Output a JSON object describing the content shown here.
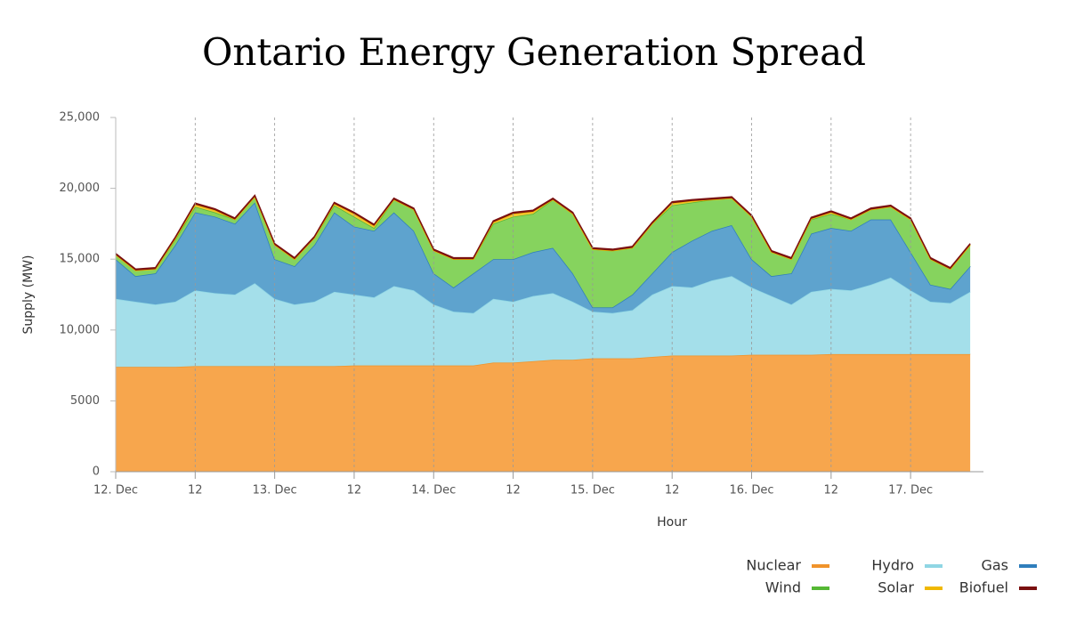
{
  "chart_data": {
    "type": "stacked_area",
    "title": "Ontario Energy Generation Spread",
    "x_label": "Hour",
    "y_label": "Supply (MW)",
    "x": [
      0,
      3,
      6,
      9,
      12,
      15,
      18,
      21,
      24,
      27,
      30,
      33,
      36,
      39,
      42,
      45,
      48,
      51,
      54,
      57,
      60,
      63,
      66,
      69,
      72,
      75,
      78,
      81,
      84,
      87,
      90,
      93,
      96,
      99,
      102,
      105,
      108,
      111,
      114,
      117,
      120,
      123,
      126,
      129
    ],
    "xlim": [
      0,
      131
    ],
    "xticks": [
      {
        "value": 0,
        "label": "12. Dec"
      },
      {
        "value": 12,
        "label": "12"
      },
      {
        "value": 24,
        "label": "13. Dec"
      },
      {
        "value": 36,
        "label": "12"
      },
      {
        "value": 48,
        "label": "14. Dec"
      },
      {
        "value": 60,
        "label": "12"
      },
      {
        "value": 72,
        "label": "15. Dec"
      },
      {
        "value": 84,
        "label": "12"
      },
      {
        "value": 96,
        "label": "16. Dec"
      },
      {
        "value": 108,
        "label": "12"
      },
      {
        "value": 120,
        "label": "17. Dec"
      }
    ],
    "ylim": [
      0,
      25000
    ],
    "yticks": [
      0,
      5000,
      {
        "value": 10000,
        "label": "10,000"
      },
      {
        "value": 15000,
        "label": "15,000"
      },
      {
        "value": 20000,
        "label": "20,000"
      },
      {
        "value": 25000,
        "label": "25,000"
      }
    ],
    "x_grid": true,
    "legend": "bottom-right",
    "series": [
      {
        "name": "Nuclear",
        "color": "#f7a64d",
        "line_color": "#f0932b",
        "values": [
          7400,
          7400,
          7400,
          7400,
          7450,
          7450,
          7450,
          7450,
          7450,
          7450,
          7450,
          7450,
          7500,
          7500,
          7500,
          7500,
          7500,
          7500,
          7500,
          7700,
          7700,
          7800,
          7900,
          7900,
          8000,
          8000,
          8000,
          8100,
          8200,
          8200,
          8200,
          8200,
          8250,
          8250,
          8250,
          8250,
          8300,
          8300,
          8300,
          8300,
          8300,
          8300,
          8300,
          8300
        ]
      },
      {
        "name": "Hydro",
        "color": "#a4dfea",
        "line_color": "#8fd6e4",
        "values": [
          4800,
          4600,
          4400,
          4600,
          5350,
          5150,
          5050,
          5850,
          4750,
          4350,
          4550,
          5250,
          5000,
          4800,
          5600,
          5300,
          4300,
          3800,
          3700,
          4500,
          4300,
          4600,
          4700,
          4100,
          3300,
          3200,
          3400,
          4400,
          4900,
          4800,
          5300,
          5600,
          4750,
          4150,
          3550,
          4450,
          4600,
          4500,
          4900,
          5400,
          4500,
          3700,
          3600,
          4400
        ]
      },
      {
        "name": "Gas",
        "color": "#5ea3ce",
        "line_color": "#2f7ebc",
        "values": [
          2800,
          1800,
          2200,
          4000,
          5500,
          5400,
          5000,
          5700,
          2800,
          2700,
          4000,
          5600,
          4800,
          4700,
          5200,
          4200,
          2200,
          1700,
          2800,
          2800,
          3000,
          3100,
          3200,
          2000,
          300,
          400,
          1100,
          1500,
          2400,
          3300,
          3500,
          3600,
          2000,
          1400,
          2200,
          4100,
          4300,
          4200,
          4600,
          4100,
          2700,
          1200,
          1000,
          1800
        ]
      },
      {
        "name": "Wind",
        "color": "#86d35e",
        "line_color": "#55b834",
        "values": [
          300,
          400,
          300,
          400,
          400,
          300,
          300,
          400,
          1000,
          500,
          500,
          500,
          700,
          200,
          900,
          1500,
          1600,
          2000,
          1000,
          2500,
          3000,
          2700,
          3400,
          4200,
          4100,
          4000,
          3300,
          3500,
          3300,
          2700,
          2200,
          1900,
          3000,
          1700,
          1000,
          1000,
          1000,
          800,
          700,
          900,
          2300,
          1800,
          1400,
          1500
        ]
      },
      {
        "name": "Solar",
        "color": "#f5c533",
        "line_color": "#f0b800",
        "values": [
          0,
          0,
          0,
          50,
          150,
          150,
          0,
          0,
          0,
          0,
          0,
          100,
          200,
          150,
          0,
          0,
          0,
          0,
          0,
          100,
          200,
          150,
          0,
          0,
          0,
          0,
          0,
          0,
          150,
          100,
          0,
          0,
          0,
          0,
          0,
          50,
          100,
          0,
          0,
          0,
          0,
          0,
          0,
          0
        ]
      },
      {
        "name": "Biofuel",
        "color": "#7a1010",
        "line_color": "#7a1010",
        "values": [
          100,
          100,
          100,
          100,
          100,
          100,
          100,
          100,
          100,
          100,
          100,
          100,
          100,
          100,
          100,
          100,
          100,
          100,
          100,
          100,
          100,
          100,
          100,
          100,
          100,
          100,
          100,
          100,
          100,
          100,
          100,
          100,
          100,
          100,
          100,
          100,
          100,
          100,
          100,
          100,
          100,
          100,
          100,
          100
        ]
      }
    ]
  }
}
